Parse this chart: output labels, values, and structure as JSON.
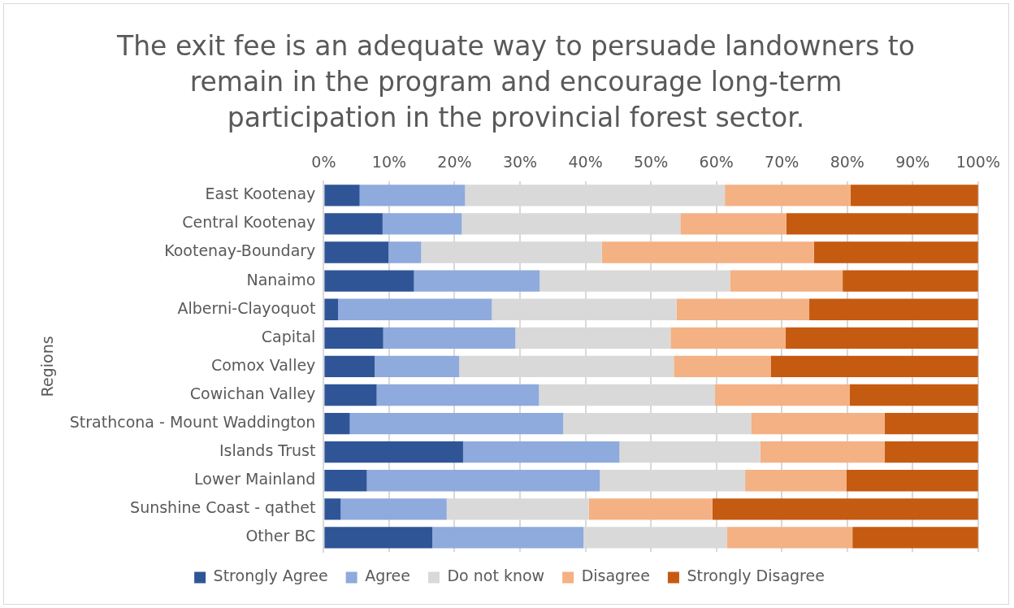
{
  "chart_data": {
    "type": "bar",
    "orientation": "horizontal",
    "stacked": true,
    "title": "The exit fee is an adequate way to persuade landowners to remain in the program and encourage long-term participation in the provincial forest sector.",
    "ylabel": "Regions",
    "categories": [
      "East Kootenay",
      "Central Kootenay",
      "Kootenay-Boundary",
      "Nanaimo",
      "Alberni-Clayoquot",
      "Capital",
      "Comox Valley",
      "Cowichan Valley",
      "Strathcona - Mount Waddington",
      "Islands Trust",
      "Lower Mainland",
      "Sunshine Coast - qathet",
      "Other BC"
    ],
    "series": [
      {
        "name": "Strongly Agree",
        "color": "#2f5597",
        "values": [
          5.5,
          9.0,
          9.9,
          13.8,
          2.2,
          9.1,
          7.8,
          8.1,
          4.0,
          21.3,
          6.6,
          2.6,
          16.6
        ]
      },
      {
        "name": "Agree",
        "color": "#8faadc",
        "values": [
          16.1,
          12.1,
          5.0,
          19.2,
          23.5,
          20.2,
          12.9,
          24.8,
          32.6,
          23.9,
          35.6,
          16.2,
          23.1
        ]
      },
      {
        "name": "Do not know",
        "color": "#d9d9d9",
        "values": [
          39.7,
          33.4,
          27.6,
          29.1,
          28.2,
          23.7,
          32.8,
          26.9,
          28.7,
          21.5,
          22.2,
          21.7,
          21.9
        ]
      },
      {
        "name": "Disagree",
        "color": "#f4b183",
        "values": [
          19.2,
          16.2,
          32.4,
          17.2,
          20.3,
          17.6,
          14.8,
          20.6,
          20.4,
          19.0,
          15.5,
          18.9,
          19.2
        ]
      },
      {
        "name": "Strongly Disagree",
        "color": "#c55a11",
        "values": [
          19.5,
          29.3,
          25.1,
          20.7,
          25.8,
          29.4,
          31.7,
          19.6,
          14.3,
          14.3,
          20.1,
          40.6,
          19.2
        ]
      }
    ],
    "xlim": [
      0,
      100
    ],
    "xticks": [
      {
        "value": 0,
        "label": "0%"
      },
      {
        "value": 10,
        "label": "10%"
      },
      {
        "value": 20,
        "label": "20%"
      },
      {
        "value": 30,
        "label": "30%"
      },
      {
        "value": 40,
        "label": "40%"
      },
      {
        "value": 50,
        "label": "50%"
      },
      {
        "value": 60,
        "label": "60%"
      },
      {
        "value": 70,
        "label": "70%"
      },
      {
        "value": 80,
        "label": "80%"
      },
      {
        "value": 90,
        "label": "90%"
      },
      {
        "value": 100,
        "label": "100%"
      }
    ],
    "grid": "x",
    "legend": "bottom"
  }
}
